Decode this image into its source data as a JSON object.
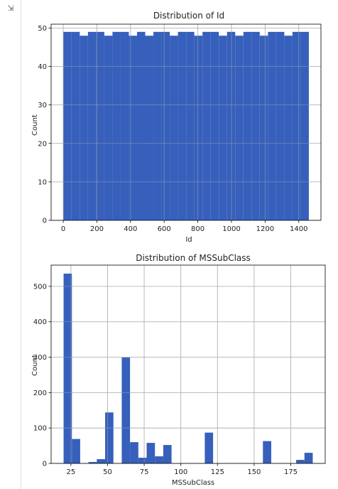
{
  "icons": {
    "output_toggle": "output-toggle-icon"
  },
  "colors": {
    "bar": "#3660bb",
    "grid": "#b0b0b0",
    "axis": "#000000"
  },
  "chart_data": [
    {
      "type": "bar",
      "title": "Distribution of Id",
      "xlabel": "Id",
      "ylabel": "Count",
      "xlim": [
        -72,
        1532
      ],
      "ylim": [
        0,
        51
      ],
      "xticks": [
        0,
        200,
        400,
        600,
        800,
        1000,
        1200,
        1400
      ],
      "yticks": [
        0,
        10,
        20,
        30,
        40,
        50
      ],
      "grid": true,
      "bin_edges": [
        1,
        49.63,
        98.27,
        146.9,
        195.53,
        244.17,
        292.8,
        341.43,
        390.07,
        438.7,
        487.33,
        535.97,
        584.6,
        633.23,
        681.87,
        730.5,
        779.13,
        827.77,
        876.4,
        925.03,
        973.67,
        1022.3,
        1070.93,
        1119.57,
        1168.2,
        1216.83,
        1265.47,
        1314.1,
        1362.73,
        1411.37,
        1460
      ],
      "values": [
        49,
        49,
        48,
        49,
        49,
        48,
        49,
        49,
        48,
        49,
        48,
        49,
        49,
        48,
        49,
        49,
        48,
        49,
        49,
        48,
        49,
        48,
        49,
        49,
        48,
        49,
        49,
        48,
        49,
        49
      ]
    },
    {
      "type": "bar",
      "title": "Distribution of MSSubClass",
      "xlabel": "MSSubClass",
      "ylabel": "Count",
      "xlim": [
        11.5,
        198.5
      ],
      "ylim": [
        0,
        560
      ],
      "xticks": [
        25,
        50,
        75,
        100,
        125,
        150,
        175
      ],
      "yticks": [
        0,
        100,
        200,
        300,
        400,
        500
      ],
      "grid": true,
      "bin_edges": [
        20,
        25.67,
        31.33,
        37,
        42.67,
        48.33,
        54,
        59.67,
        65.33,
        71,
        76.67,
        82.33,
        88,
        93.67,
        99.33,
        105,
        110.67,
        116.33,
        122,
        127.67,
        133.33,
        139,
        144.67,
        150.33,
        156,
        161.67,
        167.33,
        173,
        178.67,
        184.33,
        190
      ],
      "values": [
        536,
        69,
        0,
        4,
        12,
        144,
        0,
        299,
        60,
        16,
        58,
        20,
        52,
        0,
        0,
        0,
        0,
        87,
        0,
        0,
        0,
        0,
        0,
        0,
        63,
        0,
        0,
        0,
        10,
        30
      ]
    }
  ]
}
